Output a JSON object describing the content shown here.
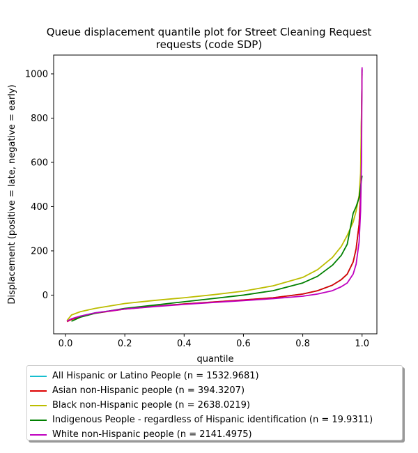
{
  "chart_data": {
    "type": "line",
    "title": "Queue displacement quantile plot for Street Cleaning Request requests (code SDP)",
    "title_lines": [
      "Queue displacement quantile plot for Street Cleaning Request",
      "requests (code SDP)"
    ],
    "xlabel": "quantile",
    "ylabel": "Displacement (positive = late, negative = early)",
    "xlim": [
      -0.04,
      1.05
    ],
    "ylim": [
      -175,
      1085
    ],
    "xticks": [
      0.0,
      0.2,
      0.4,
      0.6,
      0.8,
      1.0
    ],
    "xtick_labels": [
      "0.0",
      "0.2",
      "0.4",
      "0.6",
      "0.8",
      "1.0"
    ],
    "yticks": [
      0,
      200,
      400,
      600,
      800,
      1000
    ],
    "ytick_labels": [
      "0",
      "200",
      "400",
      "600",
      "800",
      "1000"
    ],
    "grid": false,
    "legend_position": "below",
    "series": [
      {
        "name": "All Hispanic or Latino People (n = 1532.9681)",
        "color": "#17becf",
        "x": [
          0.005,
          0.02,
          0.05,
          0.1,
          0.2,
          0.3,
          0.4,
          0.5,
          0.6,
          0.7,
          0.8,
          0.85,
          0.9,
          0.93,
          0.95,
          0.97,
          0.98,
          0.99,
          0.995,
          1.0
        ],
        "y": [
          -118,
          -108,
          -95,
          -80,
          -62,
          -50,
          -40,
          -31,
          -22,
          -12,
          5,
          20,
          45,
          70,
          95,
          150,
          210,
          320,
          450,
          1020
        ]
      },
      {
        "name": "Asian non-Hispanic people (n = 394.3207)",
        "color": "#dd0000",
        "x": [
          0.005,
          0.02,
          0.05,
          0.1,
          0.2,
          0.3,
          0.4,
          0.5,
          0.6,
          0.7,
          0.8,
          0.85,
          0.9,
          0.93,
          0.95,
          0.97,
          0.98,
          0.99,
          0.995,
          1.0
        ],
        "y": [
          -120,
          -110,
          -97,
          -82,
          -63,
          -51,
          -40,
          -31,
          -22,
          -12,
          5,
          20,
          45,
          70,
          95,
          150,
          210,
          320,
          450,
          1020
        ]
      },
      {
        "name": "Black non-Hispanic people (n = 2638.0219)",
        "color": "#bcbd00",
        "x": [
          0.005,
          0.02,
          0.05,
          0.1,
          0.2,
          0.3,
          0.4,
          0.5,
          0.6,
          0.7,
          0.8,
          0.85,
          0.9,
          0.93,
          0.95,
          0.97,
          0.98,
          0.99,
          0.995,
          1.0
        ],
        "y": [
          -115,
          -90,
          -75,
          -60,
          -38,
          -24,
          -12,
          2,
          18,
          42,
          80,
          115,
          170,
          220,
          270,
          330,
          380,
          450,
          550,
          1000
        ]
      },
      {
        "name": "Indigenous People - regardless of Hispanic identification (n = 19.9311)",
        "color": "#008000",
        "x": [
          0.02,
          0.05,
          0.1,
          0.2,
          0.3,
          0.4,
          0.5,
          0.6,
          0.7,
          0.8,
          0.85,
          0.9,
          0.93,
          0.95,
          0.96,
          0.97,
          0.98,
          0.99,
          1.0
        ],
        "y": [
          -118,
          -100,
          -82,
          -60,
          -45,
          -30,
          -15,
          0,
          20,
          55,
          85,
          135,
          180,
          230,
          300,
          370,
          400,
          440,
          540
        ]
      },
      {
        "name": "White non-Hispanic people (n = 2141.4975)",
        "color": "#bf00bf",
        "x": [
          0.005,
          0.02,
          0.05,
          0.1,
          0.2,
          0.3,
          0.4,
          0.5,
          0.6,
          0.7,
          0.8,
          0.85,
          0.9,
          0.93,
          0.95,
          0.97,
          0.98,
          0.99,
          0.995,
          0.998,
          1.0
        ],
        "y": [
          -118,
          -107,
          -95,
          -80,
          -63,
          -52,
          -42,
          -33,
          -25,
          -16,
          -5,
          5,
          20,
          38,
          55,
          95,
          140,
          240,
          380,
          600,
          1030
        ]
      }
    ]
  }
}
